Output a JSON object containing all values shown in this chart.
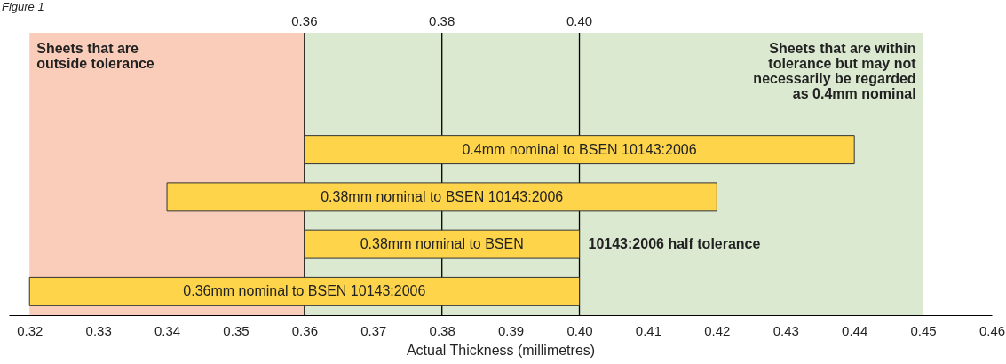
{
  "chart_data": {
    "type": "bar",
    "orientation": "horizontal",
    "title": "Figure 1",
    "xlabel": "Actual Thickness (millimetres)",
    "categories": [
      "0.4mm nominal to BSEN 10143:2006",
      "0.38mm nominal to BSEN 10143:2006",
      "0.38mm nominal to BSEN",
      "0.36mm nominal to BSEN 10143:2006"
    ],
    "base": [
      0.36,
      0.34,
      0.36,
      0.32
    ],
    "values": [
      0.08,
      0.08,
      0.04,
      0.08
    ],
    "color": "#fed54a",
    "annotations": [
      "10143:2006 half tolerance"
    ],
    "xlim": [
      0.317,
      0.46
    ],
    "xticks": [
      0.32,
      0.33,
      0.34,
      0.35,
      0.36,
      0.37,
      0.38,
      0.39,
      {
        "value": 0.4,
        "label": "0.40"
      },
      0.41,
      0.42,
      0.43,
      0.44,
      0.45,
      0.46
    ],
    "x2lim": [
      0.317,
      0.46
    ],
    "x2ticks": [
      0.36,
      0.38,
      {
        "value": 0.4,
        "label": "0.40"
      }
    ],
    "bands": [
      {
        "axis": "x",
        "from": 0.32,
        "to": 0.36,
        "label": "Sheets that are outside tolerance",
        "color": "#f9cdb9"
      },
      {
        "axis": "x",
        "from": 0.36,
        "to": 0.45,
        "label": "Sheets that are within tolerance but may not necessarily be regarded as 0.4mm nominal",
        "color": "#dbe9d0"
      }
    ],
    "ref_lines": [
      {
        "axis": "x",
        "value": 0.36,
        "color": "#000000"
      },
      {
        "axis": "x",
        "value": 0.38,
        "color": "#000000"
      },
      {
        "axis": "x",
        "value": 0.4,
        "color": "#000000"
      }
    ]
  }
}
